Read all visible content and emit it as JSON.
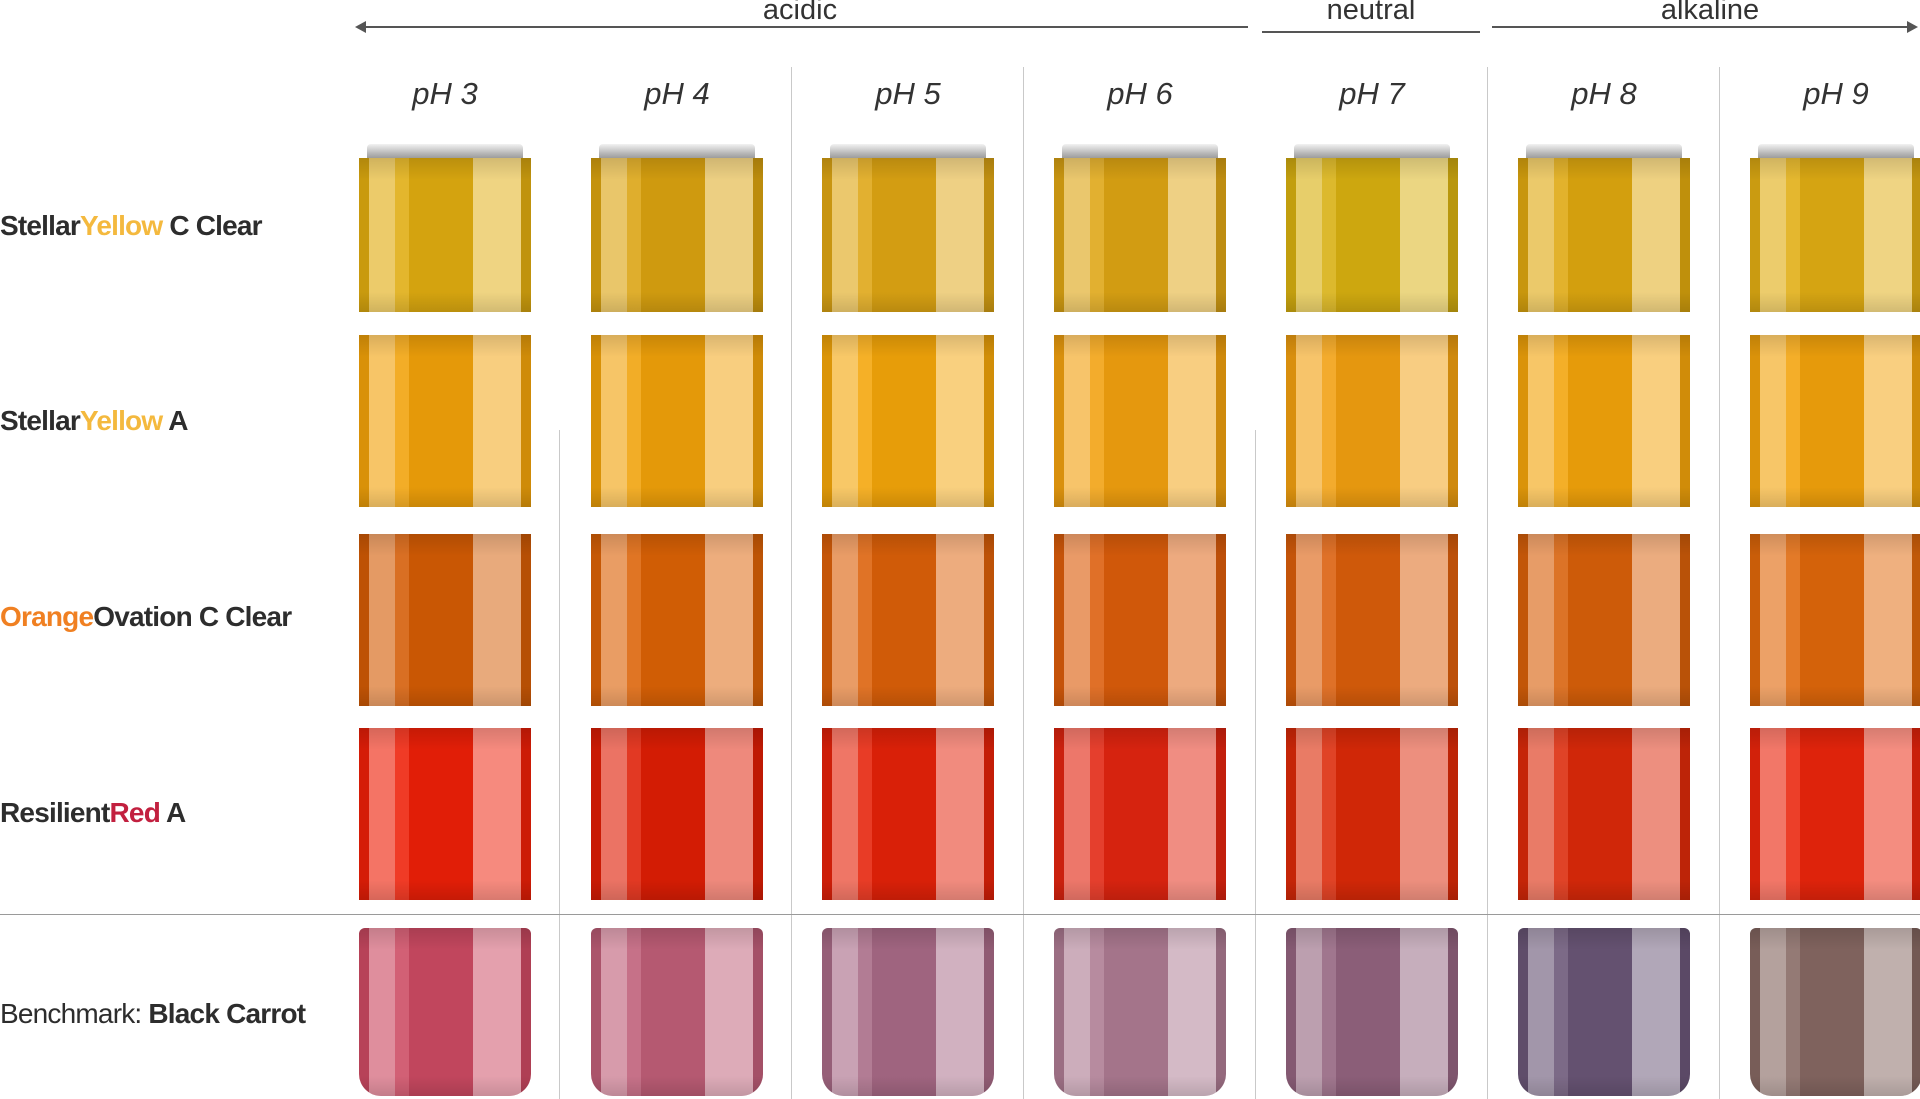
{
  "ranges": {
    "acidic": "acidic",
    "neutral": "neutral",
    "alkaline": "alkaline"
  },
  "columns": [
    "pH 3",
    "pH 4",
    "pH 5",
    "pH 6",
    "pH 7",
    "pH 8",
    "pH 9"
  ],
  "rows": [
    {
      "pre": "Stellar",
      "accent": "Yellow",
      "post": " C Clear",
      "accent_color": "#f4b93e"
    },
    {
      "pre": "Stellar",
      "accent": "Yellow",
      "post": " A",
      "accent_color": "#f4b93e"
    },
    {
      "pre": "",
      "accent": "Orange",
      "post": "Ovation C Clear",
      "accent_color": "#f08022"
    },
    {
      "pre": "Resilient",
      "accent": "Red",
      "post": " A",
      "accent_color": "#c2203f"
    },
    {
      "pre": "Benchmark: ",
      "accent": "",
      "post": "Black Carrot",
      "accent_color": "#2d2d2d"
    }
  ],
  "jar_colors": [
    [
      "#e0ac10",
      "#dba310",
      "#dfa614",
      "#dea514",
      "#d8b010",
      "#dfa80f",
      "#e1ad13"
    ],
    [
      "#f2a20a",
      "#f1a20a",
      "#f4a60a",
      "#f2a10f",
      "#f2a010",
      "#f3a40b",
      "#f3a30c"
    ],
    [
      "#d45c05",
      "#dc6206",
      "#dc6009",
      "#dc5d0b",
      "#db5e0b",
      "#d8600a",
      "#e0680b"
    ],
    [
      "#ee2008",
      "#df1e05",
      "#e52209",
      "#e22510",
      "#dc2a08",
      "#dc2a0a",
      "#ea250c"
    ],
    [
      "#cc4a62",
      "#bf5e78",
      "#a86a86",
      "#ad7b92",
      "#93647f",
      "#6a5677",
      "#866862"
    ]
  ]
}
